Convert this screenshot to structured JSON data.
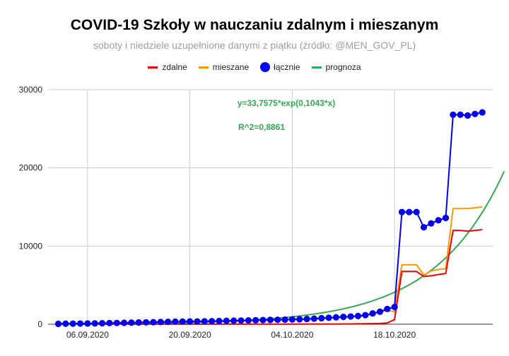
{
  "chart_data": {
    "type": "line",
    "title": "COVID-19 Szkoły w nauczaniu zdalnym i mieszanym",
    "subtitle": "soboty i niedziele uzupełnione danymi z piątku (źródło: @MEN_GOV_PL)",
    "ylim": [
      0,
      30000
    ],
    "y_ticks": [
      "0",
      "10000",
      "20000",
      "30000"
    ],
    "x_ticks": [
      {
        "day": 4,
        "label": "06.09.2020"
      },
      {
        "day": 18,
        "label": "20.09.2020"
      },
      {
        "day": 32,
        "label": "04.10.2020"
      },
      {
        "day": 46,
        "label": "18.10.2020"
      }
    ],
    "grid": true,
    "legend_position": "top",
    "series": [
      {
        "name": "zdalne",
        "color": "#ee0000",
        "style": "line",
        "x": [
          0,
          1,
          2,
          3,
          4,
          5,
          6,
          7,
          8,
          9,
          10,
          11,
          12,
          13,
          14,
          15,
          16,
          17,
          18,
          19,
          20,
          21,
          22,
          23,
          24,
          25,
          26,
          27,
          28,
          29,
          30,
          31,
          32,
          33,
          34,
          35,
          36,
          37,
          38,
          39,
          40,
          41,
          42,
          43,
          44,
          45,
          46,
          47,
          48,
          49,
          50,
          51,
          52,
          53,
          54,
          55,
          56,
          57,
          58
        ],
        "values": [
          5,
          5,
          5,
          5,
          5,
          5,
          5,
          5,
          5,
          5,
          5,
          5,
          5,
          5,
          5,
          5,
          8,
          8,
          8,
          8,
          8,
          8,
          8,
          10,
          10,
          10,
          10,
          10,
          10,
          12,
          12,
          12,
          12,
          15,
          15,
          15,
          20,
          25,
          30,
          35,
          40,
          50,
          60,
          80,
          100,
          150,
          600,
          6750,
          6750,
          6750,
          6100,
          6200,
          6350,
          6500,
          12000,
          12000,
          11900,
          12000,
          12100
        ]
      },
      {
        "name": "mieszane",
        "color": "#ff9800",
        "style": "line",
        "x": [
          0,
          1,
          2,
          3,
          4,
          5,
          6,
          7,
          8,
          9,
          10,
          11,
          12,
          13,
          14,
          15,
          16,
          17,
          18,
          19,
          20,
          21,
          22,
          23,
          24,
          25,
          26,
          27,
          28,
          29,
          30,
          31,
          32,
          33,
          34,
          35,
          36,
          37,
          38,
          39,
          40,
          41,
          42,
          43,
          44,
          45,
          46,
          47,
          48,
          49,
          50,
          51,
          52,
          53,
          54,
          55,
          56,
          57,
          58
        ],
        "values": [
          40,
          60,
          70,
          80,
          90,
          100,
          120,
          140,
          160,
          180,
          200,
          220,
          240,
          260,
          280,
          300,
          320,
          330,
          340,
          350,
          360,
          380,
          400,
          420,
          440,
          460,
          480,
          500,
          520,
          540,
          560,
          580,
          600,
          620,
          650,
          700,
          750,
          800,
          850,
          900,
          950,
          1000,
          1100,
          1300,
          1500,
          1800,
          1600,
          7600,
          7600,
          7600,
          6300,
          6800,
          7000,
          7100,
          14800,
          14800,
          14800,
          14900,
          15000
        ]
      },
      {
        "name": "łącznie",
        "color": "#0000ee",
        "style": "line-markers",
        "x": [
          0,
          1,
          2,
          3,
          4,
          5,
          6,
          7,
          8,
          9,
          10,
          11,
          12,
          13,
          14,
          15,
          16,
          17,
          18,
          19,
          20,
          21,
          22,
          23,
          24,
          25,
          26,
          27,
          28,
          29,
          30,
          31,
          32,
          33,
          34,
          35,
          36,
          37,
          38,
          39,
          40,
          41,
          42,
          43,
          44,
          45,
          46,
          47,
          48,
          49,
          50,
          51,
          52,
          53,
          54,
          55,
          56,
          57,
          58
        ],
        "values": [
          45,
          65,
          75,
          85,
          95,
          105,
          125,
          145,
          165,
          185,
          205,
          225,
          245,
          265,
          285,
          305,
          328,
          338,
          348,
          358,
          368,
          388,
          408,
          430,
          450,
          470,
          490,
          510,
          530,
          552,
          572,
          592,
          612,
          635,
          665,
          715,
          770,
          825,
          880,
          935,
          990,
          1050,
          1160,
          1380,
          1600,
          1950,
          2200,
          14350,
          14350,
          14350,
          12400,
          12900,
          13300,
          13600,
          26800,
          26800,
          26700,
          26900,
          27100
        ]
      },
      {
        "name": "prognoza",
        "color": "#34a853",
        "style": "line",
        "fit": {
          "a": 33.7575,
          "b": 0.1043,
          "x_start": 0,
          "x_end": 61
        }
      }
    ],
    "annotations": [
      "y=33,7575*exp(0,1043*x)",
      "R^2=0,8861"
    ]
  }
}
